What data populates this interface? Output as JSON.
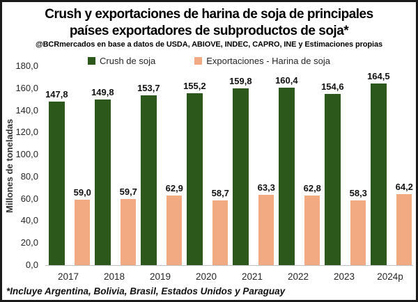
{
  "chart_data": {
    "type": "bar",
    "title": "Crush y exportaciones de harina de soja de principales países exportadores de subproductos de soja*",
    "title_lines": [
      "Crush y exportaciones de harina de soja de principales",
      "países exportadores de subproductos de soja*"
    ],
    "subtitle": "@BCRmercados en base a datos de USDA, ABIOVE, INDEC, CAPRO, INE y Estimaciones propias",
    "ylabel": "Millones de toneladas",
    "xlabel": "",
    "ylim": [
      0,
      180
    ],
    "grid": false,
    "legend_position": "top",
    "ytick_values": [
      0,
      20,
      40,
      60,
      80,
      100,
      120,
      140,
      160,
      180
    ],
    "ytick_labels": [
      "0,0",
      "20,0",
      "40,0",
      "60,0",
      "80,0",
      "100,0",
      "120,0",
      "140,0",
      "160,0",
      "180,0"
    ],
    "categories": [
      "2017",
      "2018",
      "2019",
      "2020",
      "2021",
      "2022",
      "2023",
      "2024p"
    ],
    "series": [
      {
        "name": "Crush de soja",
        "color": "#2D581C",
        "values": [
          147.8,
          149.8,
          153.7,
          155.2,
          159.8,
          160.4,
          154.6,
          164.5
        ],
        "labels": [
          "147,8",
          "149,8",
          "153,7",
          "155,2",
          "159,8",
          "160,4",
          "154,6",
          "164,5"
        ]
      },
      {
        "name": "Exportaciones - Harina de soja",
        "color": "#F1AA81",
        "values": [
          59.0,
          59.7,
          62.9,
          58.7,
          63.3,
          62.8,
          58.3,
          64.2
        ],
        "labels": [
          "59,0",
          "59,7",
          "62,9",
          "58,7",
          "63,3",
          "62,8",
          "58,3",
          "64,2"
        ]
      }
    ],
    "footnote": "*Incluye Argentina, Bolivia, Brasil, Estados Unidos y Paraguay",
    "colors": {
      "crush_green": "#2D581C",
      "exports_salmon": "#F1AA81",
      "axis_line_gray": "#BFBFBF",
      "frame_black": "#1A1A1A"
    }
  }
}
